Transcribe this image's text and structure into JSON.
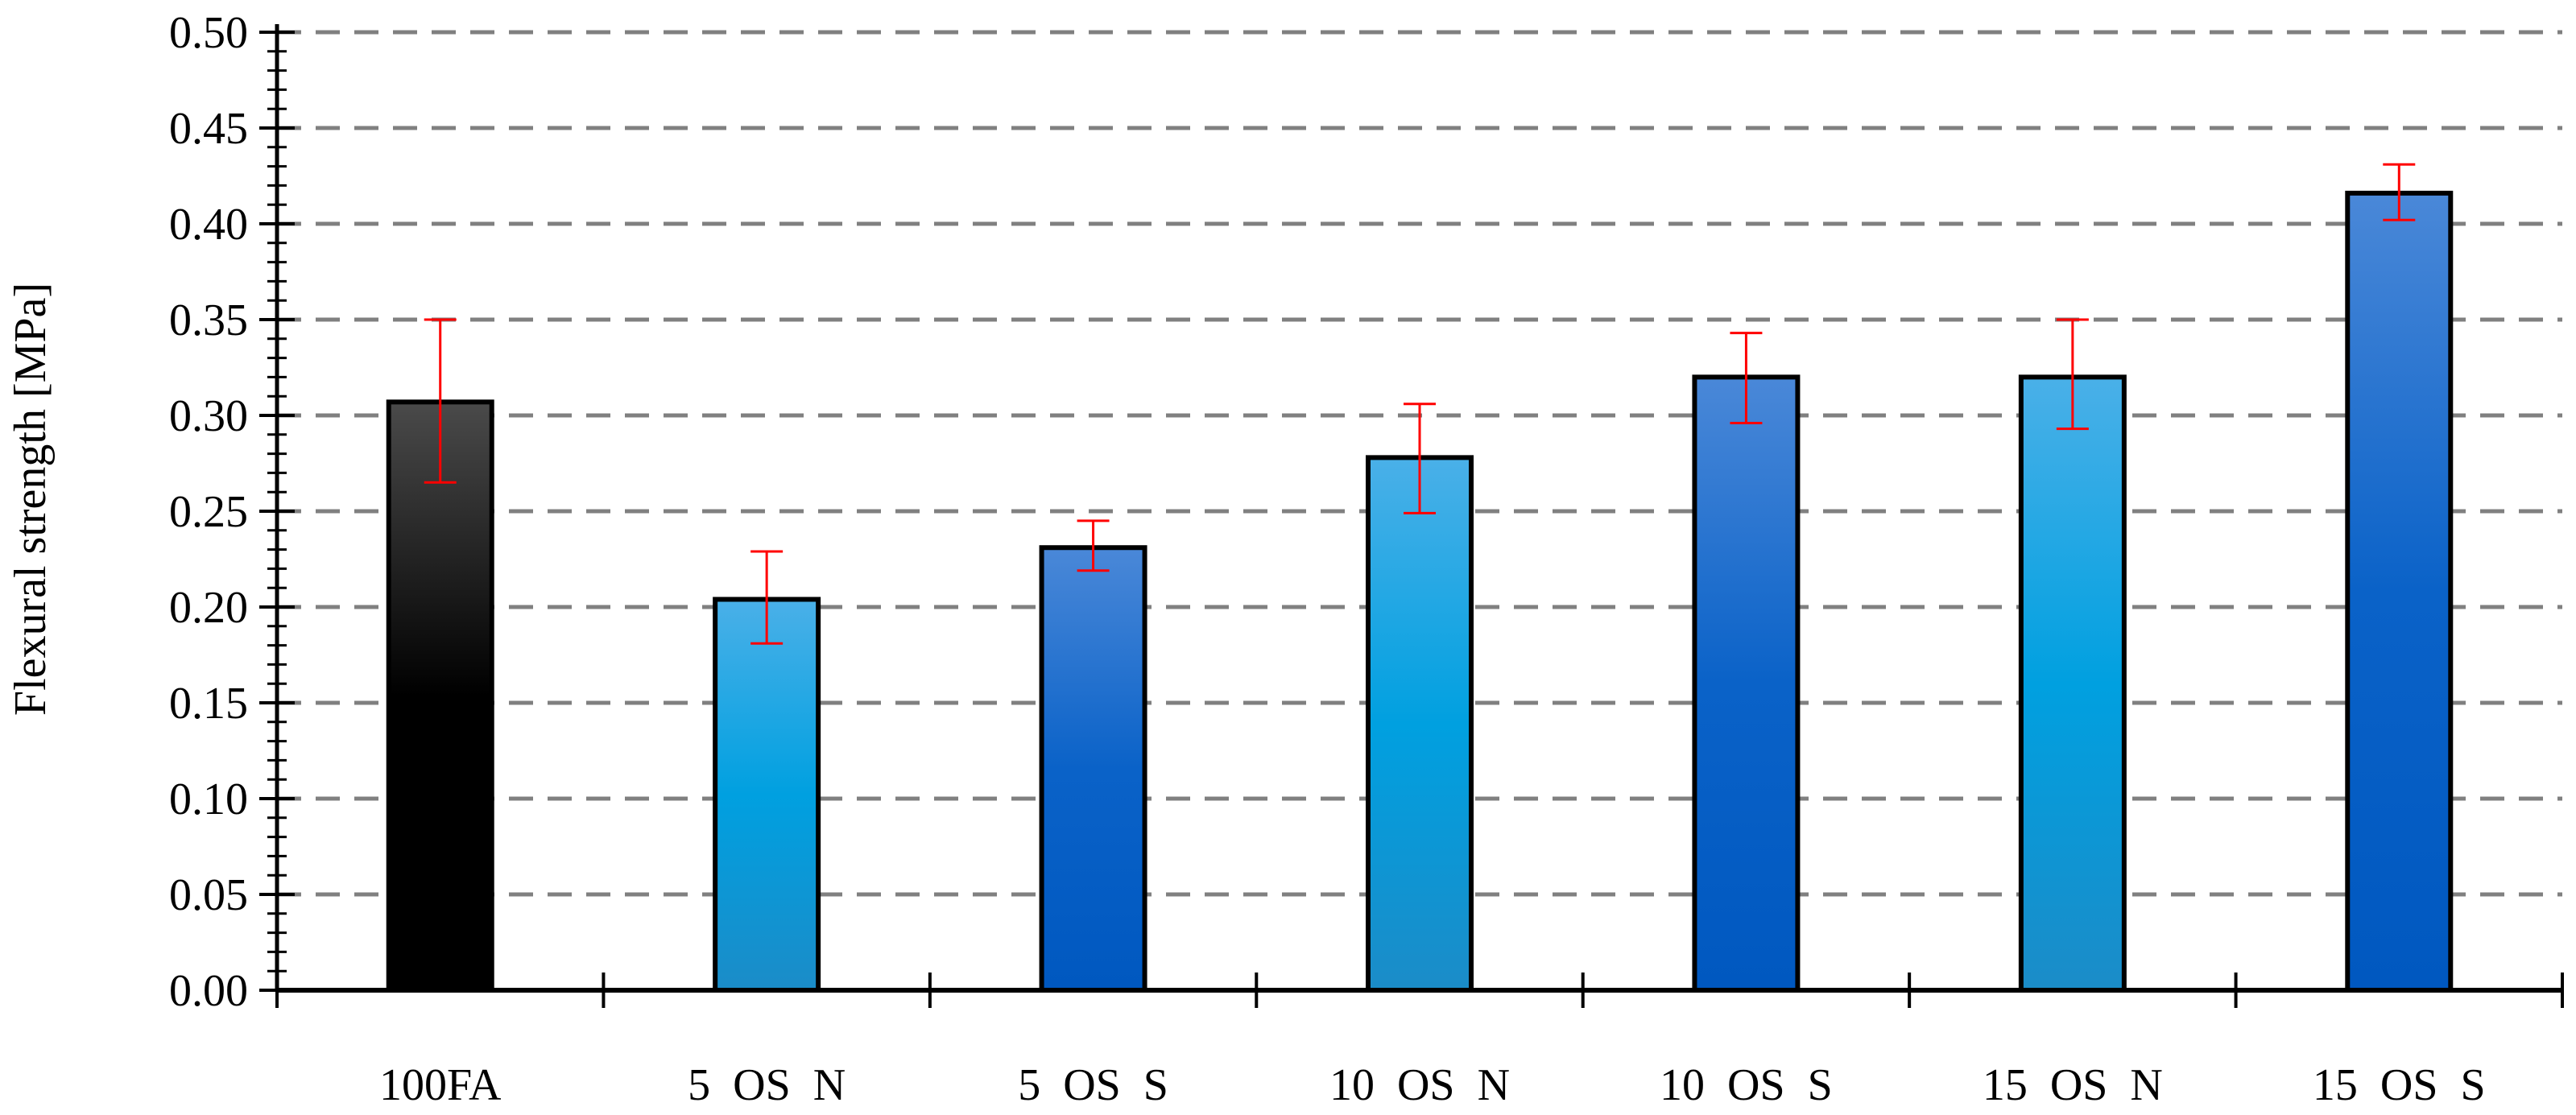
{
  "chart_data": {
    "type": "bar",
    "title": "",
    "xlabel": "",
    "ylabel": "Flexural strength [MPa]",
    "ylim": [
      0,
      0.5
    ],
    "ytick_step": 0.05,
    "ytick_labels": [
      "0.00",
      "0.05",
      "0.10",
      "0.15",
      "0.20",
      "0.25",
      "0.30",
      "0.35",
      "0.40",
      "0.45",
      "0.50"
    ],
    "grid": "horizontal dashed",
    "categories": [
      "100FA",
      "5  OS  N",
      "5  OS  S",
      "10  OS  N",
      "10  OS  S",
      "15  OS  N",
      "15  OS  S"
    ],
    "values": [
      0.307,
      0.204,
      0.231,
      0.278,
      0.32,
      0.32,
      0.416
    ],
    "error_low": [
      0.265,
      0.181,
      0.219,
      0.249,
      0.296,
      0.293,
      0.402
    ],
    "error_high": [
      0.35,
      0.229,
      0.245,
      0.306,
      0.343,
      0.35,
      0.431
    ],
    "bar_styles": [
      "black",
      "light-blue",
      "blue",
      "light-blue",
      "blue",
      "light-blue",
      "blue"
    ],
    "error_bar_color": "#ff0000",
    "colors": {
      "black_top": "#4a4a4a",
      "black_bottom": "#000000",
      "light_blue_top": "#4ab0e8",
      "light_blue_mid": "#00a0e0",
      "light_blue_bottom": "#1b8cc8",
      "blue_top": "#4a88d8",
      "blue_mid": "#0a62c8",
      "blue_bottom": "#0058c0",
      "grid": "#808080"
    }
  }
}
